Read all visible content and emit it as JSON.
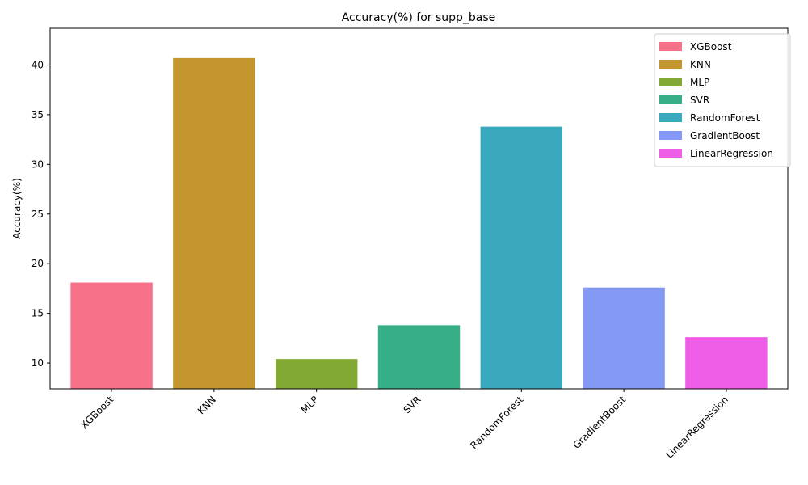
{
  "chart_data": {
    "type": "bar",
    "title": "Accuracy(%) for supp_base",
    "xlabel": "",
    "ylabel": "Accuracy(%)",
    "categories": [
      "XGBoost",
      "KNN",
      "MLP",
      "SVR",
      "RandomForest",
      "GradientBoost",
      "LinearRegression"
    ],
    "values": [
      18.1,
      40.7,
      10.4,
      13.8,
      33.8,
      17.6,
      12.6
    ],
    "colors": [
      "#f77189",
      "#c4962f",
      "#82a933",
      "#36ae87",
      "#3aa9bd",
      "#8499f3",
      "#ef5ee7"
    ],
    "ylim": [
      7.4,
      43.7
    ],
    "yticks": [
      10,
      15,
      20,
      25,
      30,
      35,
      40
    ],
    "legend": {
      "placement": "top-right",
      "entries": [
        "XGBoost",
        "KNN",
        "MLP",
        "SVR",
        "RandomForest",
        "GradientBoost",
        "LinearRegression"
      ]
    },
    "grid": false
  }
}
